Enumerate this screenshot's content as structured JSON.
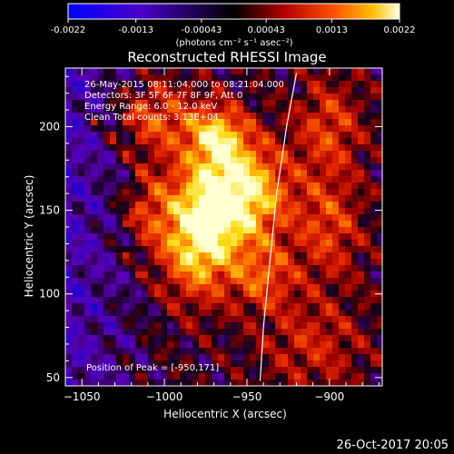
{
  "chart_data": {
    "type": "heatmap",
    "title": "Reconstructed RHESSI Image",
    "xlabel": "Heliocentric X (arcsec)",
    "ylabel": "Heliocentric Y (arcsec)",
    "xlim": [
      -1060,
      -868
    ],
    "ylim": [
      45,
      235
    ],
    "xticks": [
      -1050,
      -1000,
      -950,
      -900
    ],
    "yticks": [
      50,
      100,
      150,
      200
    ],
    "colorbar": {
      "range": [
        -0.0022,
        0.0022
      ],
      "ticks": [
        -0.0022,
        -0.0013,
        -0.00043,
        0.00043,
        0.0013,
        0.0022
      ],
      "tick_labels": [
        "-0.0022",
        "-0.0013",
        "-0.00043",
        "0.00043",
        "0.0013",
        "0.0022"
      ],
      "unit_label": "(photons cm⁻² s⁻¹ asec⁻²)"
    },
    "annotations": [
      "26-May-2015 08:11:04.000 to 08:21:04.000",
      "Detectors: 3F 5F 6F 7F 8F 9F, Att 0",
      "Energy Range: 6.0 - 12.0 keV",
      "Clean    Total counts: 3.13E+04"
    ],
    "peak": {
      "x": -950,
      "y": 171,
      "label": "Position of Peak = [-950,171]"
    },
    "limb_curve": [
      [
        -942,
        48
      ],
      [
        -940,
        80
      ],
      [
        -936,
        120
      ],
      [
        -932,
        160
      ],
      [
        -926,
        200
      ],
      [
        -920,
        232
      ]
    ],
    "blobs": [
      {
        "x": -958,
        "y": 160,
        "sx": 22,
        "sy": 22,
        "a": 1.2
      },
      {
        "x": -980,
        "y": 128,
        "sx": 15,
        "sy": 22,
        "a": 0.85
      },
      {
        "x": -968,
        "y": 195,
        "sx": 12,
        "sy": 12,
        "a": 0.7
      },
      {
        "x": -1005,
        "y": 205,
        "sx": 18,
        "sy": 15,
        "a": 0.5
      },
      {
        "x": -940,
        "y": 110,
        "sx": 14,
        "sy": 14,
        "a": 0.5
      },
      {
        "x": -900,
        "y": 140,
        "sx": 14,
        "sy": 22,
        "a": 0.45
      },
      {
        "x": -900,
        "y": 200,
        "sx": 14,
        "sy": 20,
        "a": 0.45
      },
      {
        "x": -910,
        "y": 70,
        "sx": 22,
        "sy": 20,
        "a": 0.35
      },
      {
        "x": -1010,
        "y": 150,
        "sx": 12,
        "sy": 18,
        "a": 0.35
      }
    ]
  },
  "footer": {
    "date": "26-Oct-2017 20:05"
  }
}
